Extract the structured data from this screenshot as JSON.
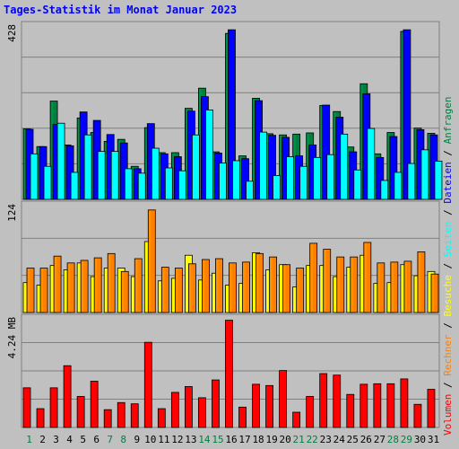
{
  "title": "Tages-Statistik im Monat Januar 2023",
  "legend": [
    {
      "text": "Volumen",
      "color": "#ff0000"
    },
    {
      "text": " / ",
      "color": "#000000"
    },
    {
      "text": "Rechner",
      "color": "#ff8000"
    },
    {
      "text": " / ",
      "color": "#000000"
    },
    {
      "text": "Besuche",
      "color": "#ffff00"
    },
    {
      "text": " / ",
      "color": "#000000"
    },
    {
      "text": "Seiten",
      "color": "#00ffff"
    },
    {
      "text": " / ",
      "color": "#000000"
    },
    {
      "text": "Dateien",
      "color": "#0000ff"
    },
    {
      "text": " / ",
      "color": "#000000"
    },
    {
      "text": "Anfragen",
      "color": "#008040"
    }
  ],
  "colors": {
    "title": "#0000ff",
    "background": "#c0c0c0",
    "weekday_label": "#000000",
    "weekend_label": "#008040"
  },
  "chart_data": [
    {
      "type": "bar",
      "max_label": "428",
      "ymax": 428,
      "categories": [
        "1",
        "2",
        "3",
        "4",
        "5",
        "6",
        "7",
        "8",
        "9",
        "10",
        "11",
        "12",
        "13",
        "14",
        "15",
        "16",
        "17",
        "18",
        "19",
        "20",
        "21",
        "22",
        "23",
        "24",
        "25",
        "26",
        "27",
        "28",
        "29",
        "30",
        "31"
      ],
      "weekend_days": [
        1,
        7,
        8,
        14,
        15,
        21,
        22,
        28,
        29
      ],
      "series": [
        {
          "name": "Anfragen",
          "color": "#008040",
          "values": [
            175,
            131,
            244,
            135,
            202,
            166,
            144,
            149,
            82,
            178,
            116,
            116,
            226,
            276,
            118,
            412,
            108,
            251,
            163,
            160,
            162,
            165,
            233,
            218,
            130,
            287,
            113,
            166,
            417,
            177,
            164
          ]
        },
        {
          "name": "Dateien",
          "color": "#0000ff",
          "values": [
            174,
            131,
            186,
            133,
            217,
            196,
            161,
            140,
            76,
            188,
            113,
            106,
            219,
            255,
            115,
            421,
            101,
            245,
            159,
            154,
            108,
            135,
            234,
            204,
            118,
            262,
            104,
            156,
            421,
            173,
            160
          ]
        },
        {
          "name": "Seiten",
          "color": "#00ffff",
          "values": [
            113,
            82,
            189,
            67,
            160,
            119,
            119,
            76,
            65,
            127,
            78,
            71,
            160,
            222,
            90,
            96,
            45,
            167,
            59,
            106,
            82,
            104,
            111,
            162,
            73,
            176,
            47,
            67,
            89,
            123,
            95
          ]
        }
      ]
    },
    {
      "type": "bar",
      "max_label": "124",
      "ymax": 124,
      "categories": [
        "1",
        "2",
        "3",
        "4",
        "5",
        "6",
        "7",
        "8",
        "9",
        "10",
        "11",
        "12",
        "13",
        "14",
        "15",
        "16",
        "17",
        "18",
        "19",
        "20",
        "21",
        "22",
        "23",
        "24",
        "25",
        "26",
        "27",
        "28",
        "29",
        "30",
        "31"
      ],
      "series": [
        {
          "name": "Besuche",
          "color": "#ffff00",
          "values": [
            35,
            32,
            55,
            50,
            58,
            42,
            52,
            52,
            42,
            83,
            37,
            40,
            67,
            38,
            46,
            32,
            34,
            70,
            50,
            56,
            30,
            55,
            55,
            42,
            53,
            67,
            34,
            35,
            56,
            43,
            48
          ]
        },
        {
          "name": "Rechner",
          "color": "#ff8000",
          "values": [
            52,
            52,
            66,
            58,
            61,
            64,
            69,
            48,
            63,
            120,
            53,
            52,
            57,
            62,
            63,
            58,
            59,
            69,
            65,
            56,
            52,
            81,
            74,
            65,
            65,
            82,
            58,
            59,
            60,
            71,
            45
          ]
        }
      ]
    },
    {
      "type": "bar",
      "max_label": "4.24 MB",
      "ymax": 4.24,
      "categories": [
        "1",
        "2",
        "3",
        "4",
        "5",
        "6",
        "7",
        "8",
        "9",
        "10",
        "11",
        "12",
        "13",
        "14",
        "15",
        "16",
        "17",
        "18",
        "19",
        "20",
        "21",
        "22",
        "23",
        "24",
        "25",
        "26",
        "27",
        "28",
        "29",
        "30",
        "31"
      ],
      "series": [
        {
          "name": "Volumen",
          "color": "#ff0000",
          "values": [
            1.56,
            0.74,
            1.56,
            2.43,
            1.22,
            1.82,
            0.7,
            0.98,
            0.93,
            3.35,
            0.74,
            1.38,
            1.61,
            1.17,
            1.87,
            4.22,
            0.8,
            1.7,
            1.65,
            2.24,
            0.6,
            1.22,
            2.12,
            2.06,
            1.3,
            1.7,
            1.72,
            1.72,
            1.91,
            0.91,
            1.5
          ]
        }
      ]
    }
  ]
}
